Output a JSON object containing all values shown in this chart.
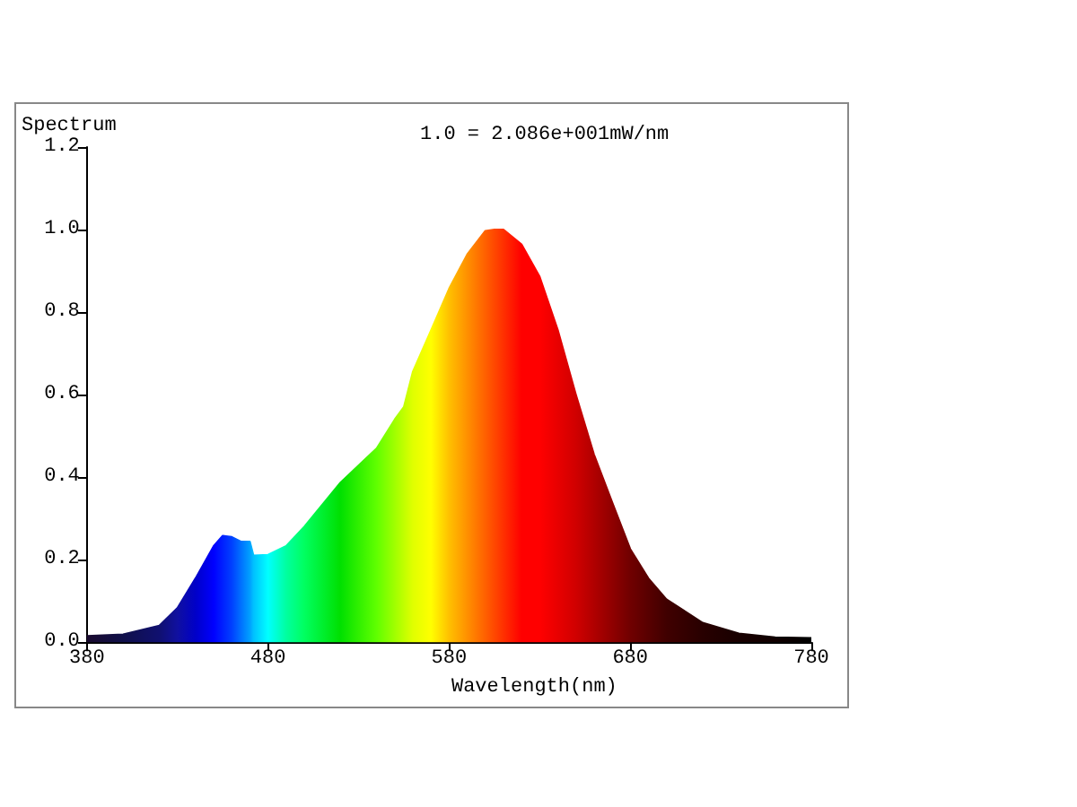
{
  "chart_data": {
    "type": "area",
    "xlabel": "Wavelength(nm)",
    "ylabel": "Spectrum",
    "annotations": [
      "1.0 = 2.086e+001mW/nm"
    ],
    "x": [
      380,
      400,
      420,
      430,
      440,
      450,
      455,
      460,
      465,
      470,
      472,
      480,
      490,
      500,
      520,
      540,
      550,
      555,
      560,
      570,
      580,
      590,
      600,
      605,
      610,
      620,
      630,
      640,
      650,
      660,
      670,
      680,
      690,
      700,
      720,
      740,
      760,
      780
    ],
    "values": [
      0.015,
      0.019,
      0.04,
      0.083,
      0.155,
      0.233,
      0.258,
      0.255,
      0.244,
      0.244,
      0.21,
      0.212,
      0.233,
      0.28,
      0.387,
      0.47,
      0.54,
      0.57,
      0.656,
      0.756,
      0.857,
      0.94,
      0.997,
      1.0,
      1.0,
      0.964,
      0.886,
      0.757,
      0.6,
      0.455,
      0.34,
      0.226,
      0.155,
      0.104,
      0.047,
      0.021,
      0.012,
      0.01
    ],
    "colors": [
      "#1a0a2e",
      "#10104a",
      "#101070",
      "#1010a0",
      "#0000c8",
      "#0000ff",
      "#0020ff",
      "#0040ff",
      "#0070ff",
      "#00a0ff",
      "#00c0ff",
      "#00ffff",
      "#00ffa0",
      "#00ff60",
      "#00e000",
      "#60ff00",
      "#a0ff00",
      "#c0ff00",
      "#e0ff00",
      "#ffff00",
      "#ffc000",
      "#ff9000",
      "#ff6000",
      "#ff4800",
      "#ff3000",
      "#ff0000",
      "#ff0000",
      "#e80000",
      "#d00000",
      "#b00000",
      "#900000",
      "#700000",
      "#580000",
      "#400000",
      "#280000",
      "#180000",
      "#100000",
      "#000000"
    ],
    "xlim": [
      380,
      780
    ],
    "xticks": [
      380,
      480,
      580,
      680,
      780
    ],
    "ylim": [
      0,
      1.2
    ],
    "yticks": [
      {
        "value": 0,
        "label": "0.0"
      },
      {
        "value": 0.2,
        "label": "0.2"
      },
      {
        "value": 0.4,
        "label": "0.4"
      },
      {
        "value": 0.6,
        "label": "0.6"
      },
      {
        "value": 0.8,
        "label": "0.8"
      },
      {
        "value": 1.0,
        "label": "1.0"
      },
      {
        "value": 1.2,
        "label": "1.2"
      }
    ],
    "marker": "none"
  }
}
